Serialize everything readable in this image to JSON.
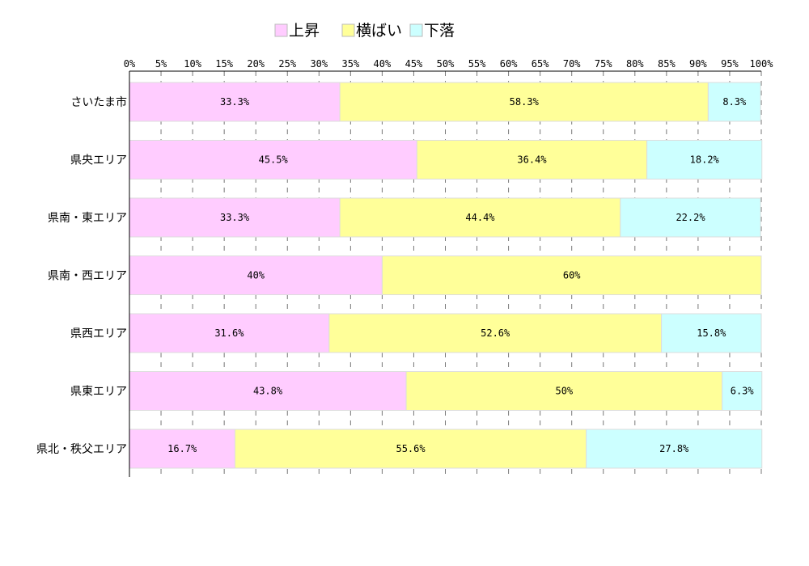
{
  "chart_data": {
    "type": "bar",
    "orientation": "horizontal",
    "stacked": true,
    "percent_stacked": true,
    "title": "",
    "xlabel": "",
    "ylabel": "",
    "xlim": [
      0,
      100
    ],
    "x_ticks": [
      "0%",
      "5%",
      "10%",
      "15%",
      "20%",
      "25%",
      "30%",
      "35%",
      "40%",
      "45%",
      "50%",
      "55%",
      "60%",
      "65%",
      "70%",
      "75%",
      "80%",
      "85%",
      "90%",
      "95%",
      "100%"
    ],
    "grid": "vertical dashed",
    "legend_position": "top",
    "categories": [
      "さいたま市",
      "県央エリア",
      "県南・東エリア",
      "県南・西エリア",
      "県西エリア",
      "県東エリア",
      "県北・秩父エリア"
    ],
    "series": [
      {
        "name": "上昇",
        "color": "#ffccff",
        "values": [
          33.3,
          45.5,
          33.3,
          40,
          31.6,
          43.8,
          16.7
        ],
        "labels": [
          "33.3%",
          "45.5%",
          "33.3%",
          "40%",
          "31.6%",
          "43.8%",
          "16.7%"
        ]
      },
      {
        "name": "横ばい",
        "color": "#ffff99",
        "values": [
          58.3,
          36.4,
          44.4,
          60,
          52.6,
          50,
          55.6
        ],
        "labels": [
          "58.3%",
          "36.4%",
          "44.4%",
          "60%",
          "52.6%",
          "50%",
          "55.6%"
        ]
      },
      {
        "name": "下落",
        "color": "#ccffff",
        "values": [
          8.3,
          18.2,
          22.2,
          0,
          15.8,
          6.3,
          27.8
        ],
        "labels": [
          "8.3%",
          "18.2%",
          "22.2%",
          "",
          "15.8%",
          "6.3%",
          "27.8%"
        ]
      }
    ]
  }
}
